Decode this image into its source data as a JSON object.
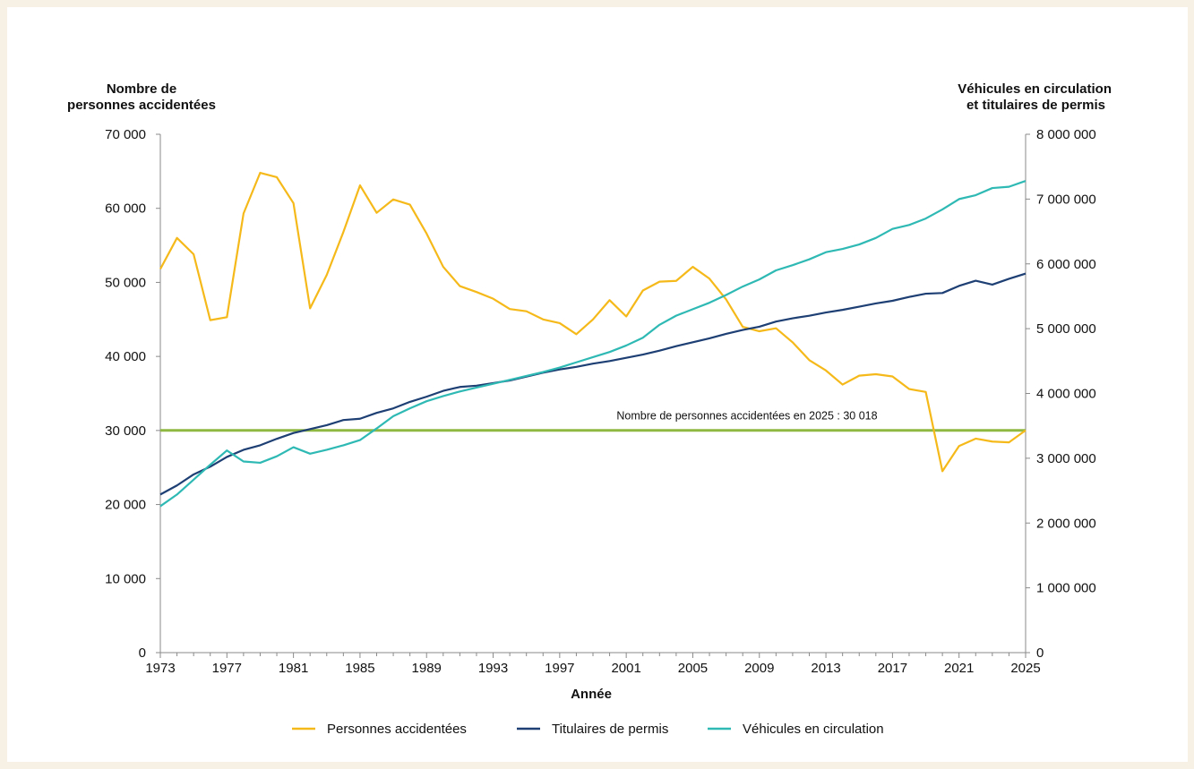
{
  "chart_data": {
    "type": "line",
    "ylabel_left": [
      "Nombre de",
      "personnes accidentées"
    ],
    "ylabel_right": [
      "Véhicules en circulation",
      "et titulaires de permis"
    ],
    "xlabel": "Année",
    "xlim": [
      1973,
      2025
    ],
    "xticks": [
      "1973",
      "1977",
      "1981",
      "1985",
      "1989",
      "1993",
      "1997",
      "2001",
      "2005",
      "2009",
      "2013",
      "2017",
      "2021",
      "2025"
    ],
    "ylim_left": [
      0,
      70000
    ],
    "yticks_left": [
      "0",
      "10 000",
      "20 000",
      "30 000",
      "40 000",
      "50 000",
      "60 000",
      "70 000"
    ],
    "ylim_right": [
      0,
      8000000
    ],
    "yticks_right": [
      "0",
      "1 000 000",
      "2 000 000",
      "3 000 000",
      "4 000 000",
      "5 000 000",
      "6 000 000",
      "7 000 000",
      "8 000 000"
    ],
    "x": [
      1973,
      1974,
      1975,
      1976,
      1977,
      1978,
      1979,
      1980,
      1981,
      1982,
      1983,
      1984,
      1985,
      1986,
      1987,
      1988,
      1989,
      1990,
      1991,
      1992,
      1993,
      1994,
      1995,
      1996,
      1997,
      1998,
      1999,
      2000,
      2001,
      2002,
      2003,
      2004,
      2005,
      2006,
      2007,
      2008,
      2009,
      2010,
      2011,
      2012,
      2013,
      2014,
      2015,
      2016,
      2017,
      2018,
      2019,
      2020,
      2021,
      2022,
      2023,
      2024,
      2025
    ],
    "series": [
      {
        "name": "Personnes accidentées",
        "axis": "left",
        "color": "#f5b91a",
        "values": [
          51800,
          56000,
          53800,
          44900,
          45300,
          59300,
          64800,
          64200,
          60700,
          46500,
          51000,
          56800,
          63100,
          59400,
          61200,
          60500,
          56600,
          52100,
          49500,
          48700,
          47800,
          46400,
          46100,
          45000,
          44500,
          43000,
          45000,
          47600,
          45400,
          48900,
          50100,
          50200,
          52100,
          50500,
          47700,
          44000,
          43400,
          43800,
          41900,
          39500,
          38100,
          36200,
          37400,
          37600,
          37300,
          35600,
          35200,
          24500,
          27900,
          28900,
          28500,
          28400,
          30018
        ]
      },
      {
        "name": "Titulaires de permis",
        "axis": "right",
        "color": "#1d3f73",
        "values": [
          2440000,
          2580000,
          2750000,
          2870000,
          3020000,
          3130000,
          3200000,
          3300000,
          3390000,
          3450000,
          3510000,
          3590000,
          3610000,
          3700000,
          3770000,
          3870000,
          3950000,
          4040000,
          4100000,
          4120000,
          4160000,
          4200000,
          4260000,
          4320000,
          4370000,
          4410000,
          4460000,
          4500000,
          4550000,
          4600000,
          4660000,
          4730000,
          4790000,
          4850000,
          4920000,
          4980000,
          5030000,
          5110000,
          5160000,
          5200000,
          5250000,
          5290000,
          5340000,
          5390000,
          5430000,
          5490000,
          5540000,
          5550000,
          5660000,
          5740000,
          5680000,
          5770000,
          5850000
        ]
      },
      {
        "name": "Véhicules en circulation",
        "axis": "right",
        "color": "#2fb9b4",
        "values": [
          2260000,
          2440000,
          2670000,
          2900000,
          3120000,
          2950000,
          2930000,
          3030000,
          3170000,
          3070000,
          3130000,
          3200000,
          3280000,
          3460000,
          3650000,
          3770000,
          3880000,
          3960000,
          4030000,
          4090000,
          4150000,
          4210000,
          4270000,
          4330000,
          4400000,
          4480000,
          4560000,
          4640000,
          4740000,
          4860000,
          5060000,
          5200000,
          5300000,
          5400000,
          5520000,
          5650000,
          5760000,
          5900000,
          5980000,
          6070000,
          6180000,
          6230000,
          6300000,
          6400000,
          6540000,
          6600000,
          6700000,
          6840000,
          7000000,
          7060000,
          7170000,
          7190000,
          7280000
        ]
      }
    ],
    "reference_line": {
      "axis": "left",
      "value": 30018,
      "color": "#8fb843",
      "label": "Nombre de personnes accidentées en 2025 : 30 018"
    },
    "legend_position": "bottom-center",
    "grid": false
  }
}
